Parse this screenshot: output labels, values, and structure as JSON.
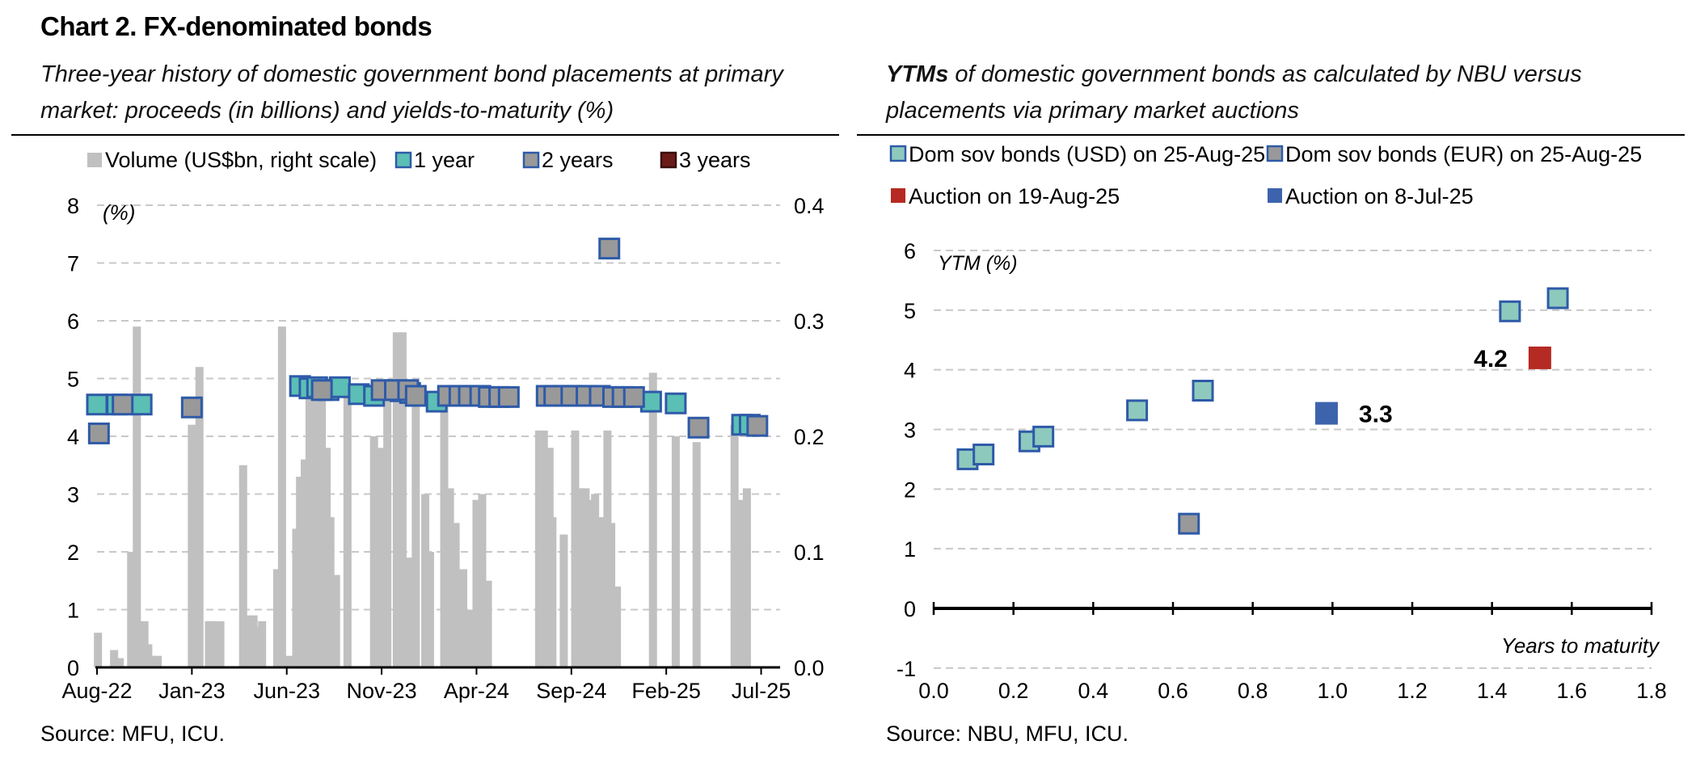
{
  "header": {
    "title": "Chart 2. FX-denominated bonds",
    "subtitle_left": "Three-year history of domestic government bond placements at primary market: proceeds (in billions) and yields-to-maturity (%)",
    "subtitle_right_bold": "YTMs",
    "subtitle_right": " of domestic government bonds as calculated by NBU versus placements via primary market auctions",
    "source_left": "Source: MFU, ICU.",
    "source_right": "Source: NBU, MFU, ICU."
  },
  "colors": {
    "volume": "#c0c0c0",
    "one_year": "#5bbfb5",
    "two_years": "#999999",
    "three_years": "#6b1a1a",
    "marker_border": "#2e5aa8",
    "usd": "#8ec9bd",
    "eur": "#999999",
    "auction_aug": "#b52a22",
    "auction_jul": "#3d63ad",
    "grid": "#c8c8c8"
  },
  "chart_data": [
    {
      "type": "bar",
      "title": "Three-year history of domestic government bond placements at primary market",
      "legend": [
        "Volume (US$bn, right scale)",
        "1 year",
        "2 years",
        "3 years"
      ],
      "legend_position": "top",
      "y_left_label": "(%)",
      "y_left_ticks": [
        "0",
        "1",
        "2",
        "3",
        "4",
        "5",
        "6",
        "7",
        "8"
      ],
      "y_left_lim": [
        0,
        8
      ],
      "y_right_ticks": [
        "0.0",
        "0.1",
        "0.2",
        "0.3",
        "0.4"
      ],
      "y_right_lim": [
        0,
        0.4
      ],
      "x_ticks": [
        "Aug-22",
        "Jan-23",
        "Jun-23",
        "Nov-23",
        "Apr-24",
        "Sep-24",
        "Feb-25",
        "Jul-25"
      ],
      "x_lim_months": [
        0,
        36
      ],
      "volume": [
        [
          0.05,
          0.03
        ],
        [
          0.9,
          0.015
        ],
        [
          1.2,
          0.008
        ],
        [
          1.8,
          0.1
        ],
        [
          2.1,
          0.295
        ],
        [
          2.5,
          0.04
        ],
        [
          2.7,
          0.02
        ],
        [
          2.9,
          0.01
        ],
        [
          3.2,
          0.01
        ],
        [
          5.0,
          0.21
        ],
        [
          5.4,
          0.26
        ],
        [
          5.9,
          0.04
        ],
        [
          6.1,
          0.04
        ],
        [
          6.5,
          0.04
        ],
        [
          7.7,
          0.175
        ],
        [
          8.0,
          0.045
        ],
        [
          8.25,
          0.045
        ],
        [
          8.45,
          0.035
        ],
        [
          8.7,
          0.04
        ],
        [
          9.5,
          0.085
        ],
        [
          9.75,
          0.295
        ],
        [
          10.1,
          0.01
        ],
        [
          10.5,
          0.12
        ],
        [
          10.7,
          0.165
        ],
        [
          10.95,
          0.18
        ],
        [
          11.2,
          0.24
        ],
        [
          11.55,
          0.25
        ],
        [
          11.85,
          0.24
        ],
        [
          12.1,
          0.19
        ],
        [
          12.3,
          0.13
        ],
        [
          12.6,
          0.08
        ],
        [
          13.2,
          0.24
        ],
        [
          14.6,
          0.2
        ],
        [
          14.9,
          0.19
        ],
        [
          15.3,
          0.24
        ],
        [
          15.8,
          0.29
        ],
        [
          16.1,
          0.29
        ],
        [
          16.5,
          0.095
        ],
        [
          16.8,
          0.235
        ],
        [
          17.3,
          0.15
        ],
        [
          17.55,
          0.1
        ],
        [
          18.3,
          0.23
        ],
        [
          18.6,
          0.155
        ],
        [
          18.9,
          0.125
        ],
        [
          19.3,
          0.085
        ],
        [
          19.7,
          0.05
        ],
        [
          20.0,
          0.145
        ],
        [
          20.3,
          0.15
        ],
        [
          20.6,
          0.075
        ],
        [
          23.3,
          0.205
        ],
        [
          23.55,
          0.205
        ],
        [
          23.85,
          0.19
        ],
        [
          24.0,
          0.13
        ],
        [
          24.6,
          0.115
        ],
        [
          25.2,
          0.205
        ],
        [
          25.5,
          0.155
        ],
        [
          25.75,
          0.155
        ],
        [
          26.0,
          0.145
        ],
        [
          26.25,
          0.15
        ],
        [
          26.5,
          0.13
        ],
        [
          26.9,
          0.205
        ],
        [
          27.1,
          0.125
        ],
        [
          27.4,
          0.07
        ],
        [
          29.3,
          0.255
        ],
        [
          30.5,
          0.2
        ],
        [
          31.6,
          0.195
        ],
        [
          33.6,
          0.21
        ],
        [
          33.95,
          0.145
        ],
        [
          34.25,
          0.155
        ]
      ],
      "series": [
        {
          "name": "1 year",
          "points": [
            [
              0,
              4.55
            ],
            [
              1.05,
              4.55
            ],
            [
              2.35,
              4.55
            ],
            [
              10.7,
              4.87
            ],
            [
              11.2,
              4.83
            ],
            [
              11.6,
              4.85
            ],
            [
              12.2,
              4.8
            ],
            [
              12.8,
              4.85
            ],
            [
              13.8,
              4.73
            ],
            [
              14.6,
              4.7
            ],
            [
              16.0,
              4.78
            ],
            [
              16.5,
              4.75
            ],
            [
              17.9,
              4.6
            ],
            [
              24.6,
              4.7
            ],
            [
              25.3,
              4.7
            ],
            [
              29.2,
              4.6
            ],
            [
              30.5,
              4.57
            ],
            [
              34.0,
              4.2
            ],
            [
              34.4,
              4.2
            ]
          ]
        },
        {
          "name": "2 years",
          "points": [
            [
              0.1,
              4.05
            ],
            [
              1.35,
              4.55
            ],
            [
              5.0,
              4.5
            ],
            [
              11.85,
              4.8
            ],
            [
              15.0,
              4.8
            ],
            [
              15.7,
              4.8
            ],
            [
              16.4,
              4.8
            ],
            [
              16.8,
              4.7
            ],
            [
              18.5,
              4.7
            ],
            [
              19.1,
              4.7
            ],
            [
              19.6,
              4.7
            ],
            [
              20.2,
              4.7
            ],
            [
              20.65,
              4.68
            ],
            [
              21.2,
              4.68
            ],
            [
              21.7,
              4.68
            ],
            [
              23.7,
              4.7
            ],
            [
              24.1,
              4.7
            ],
            [
              25.0,
              4.7
            ],
            [
              25.8,
              4.7
            ],
            [
              26.5,
              4.7
            ],
            [
              27.0,
              7.25
            ],
            [
              27.2,
              4.68
            ],
            [
              27.7,
              4.68
            ],
            [
              28.3,
              4.68
            ],
            [
              31.7,
              4.15
            ],
            [
              34.8,
              4.18
            ]
          ]
        },
        {
          "name": "3 years",
          "points": []
        }
      ]
    },
    {
      "type": "scatter",
      "title": "YTMs of domestic government bonds as calculated by NBU versus placements via primary market auctions",
      "legend": [
        "Dom sov bonds (USD) on 25-Aug-25",
        "Dom sov bonds (EUR) on 25-Aug-25",
        "Auction on 19-Aug-25",
        "Auction on 8-Jul-25"
      ],
      "legend_position": "top",
      "xlabel": "Years to maturity",
      "ylabel": "YTM (%)",
      "x_ticks": [
        "0.0",
        "0.2",
        "0.4",
        "0.6",
        "0.8",
        "1.0",
        "1.2",
        "1.4",
        "1.6",
        "1.8"
      ],
      "y_ticks": [
        "-1",
        "0",
        "1",
        "2",
        "3",
        "4",
        "5",
        "6"
      ],
      "xlim": [
        0,
        1.8
      ],
      "ylim": [
        -1,
        6
      ],
      "series": [
        {
          "name": "Dom sov bonds (USD) on 25-Aug-25",
          "points": [
            [
              0.085,
              2.5
            ],
            [
              0.125,
              2.58
            ],
            [
              0.24,
              2.8
            ],
            [
              0.275,
              2.88
            ],
            [
              0.51,
              3.32
            ],
            [
              0.675,
              3.65
            ],
            [
              1.445,
              4.98
            ],
            [
              1.565,
              5.2
            ]
          ]
        },
        {
          "name": "Dom sov bonds (EUR) on 25-Aug-25",
          "points": [
            [
              0.64,
              1.42
            ]
          ]
        },
        {
          "name": "Auction on 19-Aug-25",
          "points": [
            [
              1.52,
              4.2
            ]
          ],
          "label": "4.2"
        },
        {
          "name": "Auction on 8-Jul-25",
          "points": [
            [
              0.985,
              3.27
            ]
          ],
          "label": "3.3"
        }
      ]
    }
  ]
}
